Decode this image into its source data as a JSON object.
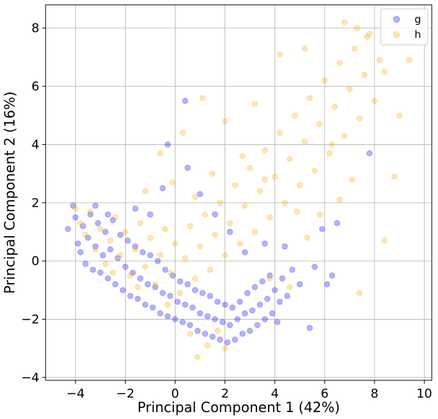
{
  "chart_data": {
    "type": "scatter",
    "title": "",
    "xlabel": "Principal Component 1 (42%)",
    "ylabel": "Principal Component 2 (16%)",
    "xlim": [
      -5.2,
      10.3
    ],
    "ylim": [
      -4.1,
      8.8
    ],
    "xticks": [
      -4,
      -2,
      0,
      2,
      4,
      6,
      8,
      10
    ],
    "yticks": [
      -4,
      -2,
      0,
      2,
      4,
      6,
      8
    ],
    "grid": true,
    "legend_position": "top-right",
    "point_alpha": 0.3,
    "series": [
      {
        "name": "g",
        "color": "#0000ff",
        "points": [
          [
            -4.3,
            1.1
          ],
          [
            -4.1,
            1.9
          ],
          [
            -4.0,
            1.5
          ],
          [
            -3.9,
            0.6
          ],
          [
            -3.8,
            0.3
          ],
          [
            -3.7,
            1.2
          ],
          [
            -3.6,
            -0.1
          ],
          [
            -3.5,
            0.8
          ],
          [
            -3.4,
            1.6
          ],
          [
            -3.3,
            -0.3
          ],
          [
            -3.2,
            0.5
          ],
          [
            -3.1,
            1.3
          ],
          [
            -3.0,
            -0.4
          ],
          [
            -2.9,
            0.2
          ],
          [
            -2.8,
            1.0
          ],
          [
            -2.7,
            -0.6
          ],
          [
            -2.6,
            0.4
          ],
          [
            -2.5,
            1.4
          ],
          [
            -2.4,
            -0.8
          ],
          [
            -2.3,
            0.1
          ],
          [
            -2.2,
            0.9
          ],
          [
            -2.1,
            -1.0
          ],
          [
            -2.0,
            -0.2
          ],
          [
            -1.9,
            0.7
          ],
          [
            -1.8,
            -1.2
          ],
          [
            -1.7,
            -0.4
          ],
          [
            -1.6,
            0.5
          ],
          [
            -1.5,
            -1.3
          ],
          [
            -1.4,
            -0.6
          ],
          [
            -1.3,
            0.3
          ],
          [
            -1.2,
            -1.5
          ],
          [
            -1.1,
            -0.8
          ],
          [
            -1.0,
            0.2
          ],
          [
            -0.9,
            -1.6
          ],
          [
            -0.8,
            -0.9
          ],
          [
            -0.7,
            0.0
          ],
          [
            -0.6,
            -1.8
          ],
          [
            -0.5,
            -1.1
          ],
          [
            -0.4,
            -0.3
          ],
          [
            -0.3,
            -1.9
          ],
          [
            -0.2,
            -1.2
          ],
          [
            -0.1,
            -0.5
          ],
          [
            0.0,
            -2.0
          ],
          [
            0.1,
            -1.4
          ],
          [
            0.2,
            -0.7
          ],
          [
            0.3,
            -2.1
          ],
          [
            0.4,
            -1.5
          ],
          [
            0.5,
            -0.8
          ],
          [
            0.6,
            -2.2
          ],
          [
            0.7,
            -1.6
          ],
          [
            0.8,
            -1.0
          ],
          [
            0.9,
            -2.4
          ],
          [
            1.0,
            -1.8
          ],
          [
            1.1,
            -1.1
          ],
          [
            1.2,
            -2.5
          ],
          [
            1.3,
            -1.9
          ],
          [
            1.4,
            -1.2
          ],
          [
            1.5,
            -2.6
          ],
          [
            1.6,
            -2.0
          ],
          [
            1.7,
            -1.4
          ],
          [
            1.8,
            -2.7
          ],
          [
            1.9,
            -2.1
          ],
          [
            2.0,
            -1.5
          ],
          [
            2.1,
            -2.8
          ],
          [
            2.2,
            -2.2
          ],
          [
            2.3,
            -1.6
          ],
          [
            2.4,
            -2.7
          ],
          [
            2.5,
            -2.0
          ],
          [
            2.6,
            -1.4
          ],
          [
            2.7,
            -2.5
          ],
          [
            2.8,
            -1.8
          ],
          [
            2.9,
            -1.1
          ],
          [
            3.0,
            -2.4
          ],
          [
            3.1,
            -1.7
          ],
          [
            3.2,
            -0.9
          ],
          [
            3.3,
            -2.2
          ],
          [
            3.4,
            -1.5
          ],
          [
            3.5,
            -0.7
          ],
          [
            3.6,
            -2.0
          ],
          [
            3.7,
            -1.3
          ],
          [
            3.8,
            -0.5
          ],
          [
            3.9,
            -1.8
          ],
          [
            4.0,
            -1.0
          ],
          [
            4.1,
            -2.1
          ],
          [
            4.2,
            -1.4
          ],
          [
            4.3,
            -0.6
          ],
          [
            4.5,
            -1.2
          ],
          [
            4.7,
            -0.3
          ],
          [
            5.0,
            -0.8
          ],
          [
            5.4,
            -2.3
          ],
          [
            5.6,
            -0.2
          ],
          [
            5.9,
            1.1
          ],
          [
            6.1,
            -0.8
          ],
          [
            6.3,
            -0.5
          ],
          [
            6.5,
            1.3
          ],
          [
            7.8,
            3.7
          ],
          [
            0.4,
            5.5
          ],
          [
            -0.3,
            4.0
          ],
          [
            -0.5,
            2.5
          ],
          [
            0.5,
            3.2
          ],
          [
            1.0,
            2.3
          ],
          [
            1.6,
            1.6
          ],
          [
            2.2,
            1.0
          ],
          [
            2.8,
            0.3
          ],
          [
            3.6,
            0.6
          ],
          [
            4.4,
            0.5
          ],
          [
            -1.0,
            1.6
          ],
          [
            -1.6,
            1.8
          ],
          [
            -2.7,
            1.6
          ],
          [
            -3.2,
            1.9
          ]
        ]
      },
      {
        "name": "h",
        "color": "#ffa500",
        "points": [
          [
            -4.0,
            1.8
          ],
          [
            -3.8,
            1.3
          ],
          [
            -3.6,
            0.9
          ],
          [
            -3.4,
            1.7
          ],
          [
            -3.2,
            0.4
          ],
          [
            -3.0,
            1.1
          ],
          [
            -2.8,
            -0.1
          ],
          [
            -2.6,
            0.7
          ],
          [
            -2.4,
            1.5
          ],
          [
            -2.2,
            0.2
          ],
          [
            -2.0,
            1.0
          ],
          [
            -1.8,
            -0.5
          ],
          [
            -1.6,
            0.4
          ],
          [
            -1.4,
            1.3
          ],
          [
            -1.2,
            -0.2
          ],
          [
            -1.0,
            0.8
          ],
          [
            -0.8,
            -0.8
          ],
          [
            -0.6,
            0.2
          ],
          [
            -0.4,
            1.1
          ],
          [
            -0.2,
            -0.4
          ],
          [
            0.0,
            0.6
          ],
          [
            0.2,
            -1.1
          ],
          [
            0.4,
            0.1
          ],
          [
            0.6,
            1.2
          ],
          [
            0.8,
            -0.6
          ],
          [
            1.0,
            0.5
          ],
          [
            1.2,
            1.6
          ],
          [
            1.4,
            -0.3
          ],
          [
            1.6,
            0.9
          ],
          [
            1.8,
            2.0
          ],
          [
            2.0,
            0.2
          ],
          [
            2.2,
            1.3
          ],
          [
            2.4,
            2.6
          ],
          [
            2.6,
            0.6
          ],
          [
            2.8,
            1.9
          ],
          [
            3.0,
            3.2
          ],
          [
            3.2,
            1.0
          ],
          [
            3.4,
            2.4
          ],
          [
            3.6,
            3.8
          ],
          [
            3.8,
            1.5
          ],
          [
            4.0,
            2.9
          ],
          [
            4.2,
            4.4
          ],
          [
            4.4,
            2.0
          ],
          [
            4.6,
            3.5
          ],
          [
            4.8,
            5.0
          ],
          [
            5.0,
            2.6
          ],
          [
            5.2,
            4.1
          ],
          [
            5.4,
            5.6
          ],
          [
            5.6,
            3.1
          ],
          [
            5.8,
            4.7
          ],
          [
            6.0,
            6.2
          ],
          [
            6.2,
            3.7
          ],
          [
            6.4,
            5.3
          ],
          [
            6.6,
            6.8
          ],
          [
            6.8,
            4.3
          ],
          [
            7.0,
            5.9
          ],
          [
            7.2,
            7.3
          ],
          [
            7.4,
            4.9
          ],
          [
            7.6,
            6.4
          ],
          [
            7.8,
            7.8
          ],
          [
            8.0,
            5.5
          ],
          [
            8.2,
            6.9
          ],
          [
            8.4,
            6.5
          ],
          [
            8.8,
            2.9
          ],
          [
            9.0,
            5.0
          ],
          [
            9.4,
            6.9
          ],
          [
            8.4,
            0.7
          ],
          [
            7.4,
            -1.1
          ],
          [
            6.8,
            8.2
          ],
          [
            7.3,
            8.0
          ],
          [
            7.7,
            7.7
          ],
          [
            1.1,
            5.6
          ],
          [
            0.3,
            4.4
          ],
          [
            -0.6,
            3.7
          ],
          [
            -1.2,
            2.4
          ],
          [
            2.0,
            4.8
          ],
          [
            3.2,
            5.4
          ],
          [
            4.2,
            7.1
          ],
          [
            5.2,
            7.3
          ],
          [
            6.3,
            4.0
          ],
          [
            0.9,
            -3.3
          ],
          [
            1.3,
            -2.9
          ],
          [
            0.6,
            -2.5
          ],
          [
            2.0,
            -3.0
          ],
          [
            1.7,
            -2.4
          ],
          [
            -0.3,
            -1.5
          ],
          [
            -1.5,
            -0.9
          ],
          [
            -2.5,
            -0.4
          ],
          [
            3.8,
            -0.6
          ],
          [
            4.6,
            -0.9
          ],
          [
            5.3,
            0.8
          ],
          [
            5.8,
            1.6
          ],
          [
            6.6,
            2.1
          ],
          [
            7.1,
            2.8
          ],
          [
            4.9,
            1.7
          ],
          [
            3.6,
            2.8
          ],
          [
            2.7,
            3.6
          ],
          [
            1.5,
            3.0
          ],
          [
            0.8,
            2.2
          ],
          [
            -0.1,
            2.7
          ]
        ]
      }
    ]
  }
}
